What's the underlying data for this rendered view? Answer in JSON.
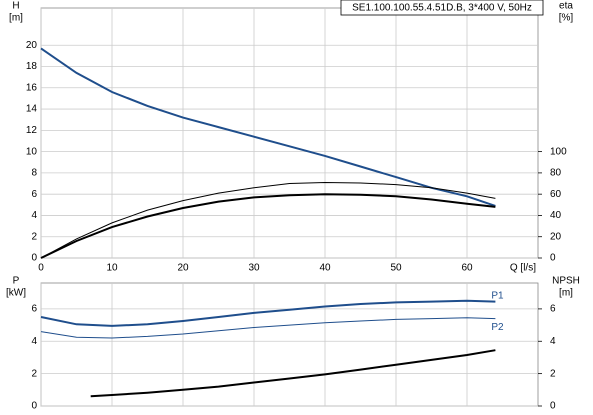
{
  "chart_data": [
    {
      "type": "line",
      "title": "SE1.100.100.55.4.51D.B, 3*400 V, 50Hz",
      "ylabel": "H",
      "yunit": "[m]",
      "y2label": "eta",
      "y2unit": "[%]",
      "xlabel": "Q [l/s]",
      "x": [
        0,
        5,
        10,
        15,
        20,
        25,
        30,
        35,
        40,
        45,
        50,
        55,
        60,
        64
      ],
      "xlim": [
        0,
        70
      ],
      "xticks": [
        0,
        10,
        20,
        30,
        40,
        50,
        60
      ],
      "ylim": [
        0,
        23.5
      ],
      "yticks": [
        0,
        2,
        4,
        6,
        8,
        10,
        12,
        14,
        16,
        18,
        20
      ],
      "y2lim": [
        0,
        235
      ],
      "y2ticks": [
        0,
        20,
        40,
        60,
        80,
        100
      ],
      "grid": true,
      "series": [
        {
          "color": "#1f4e8c",
          "width": 2,
          "values": [
            19.7,
            17.4,
            15.6,
            14.3,
            13.2,
            12.3,
            11.4,
            10.5,
            9.6,
            8.6,
            7.6,
            6.6,
            5.8,
            4.9
          ]
        },
        {
          "color": "#000000",
          "width": 2,
          "axis": "y2",
          "values": [
            0,
            16,
            29,
            39,
            47,
            53,
            57,
            59,
            60,
            59.5,
            58,
            55,
            51,
            48
          ]
        },
        {
          "color": "#000000",
          "width": 1,
          "axis": "y2",
          "values": [
            0,
            18,
            33,
            45,
            54,
            61,
            66,
            70,
            71,
            70.5,
            69,
            66,
            61,
            56
          ]
        }
      ]
    },
    {
      "type": "line",
      "ylabel": "P",
      "yunit": "[kW]",
      "y2label": "NPSH",
      "y2unit": "[m]",
      "x": [
        0,
        5,
        10,
        15,
        20,
        25,
        30,
        35,
        40,
        45,
        50,
        55,
        60,
        64
      ],
      "xlim": [
        0,
        70
      ],
      "xticks": [
        0,
        10,
        20,
        30,
        40,
        50,
        60
      ],
      "xtick_labels": false,
      "ylim": [
        0,
        7.6
      ],
      "yticks": [
        0,
        2,
        4,
        6
      ],
      "y2lim": [
        0,
        7.6
      ],
      "y2ticks": [
        0,
        2,
        4,
        6
      ],
      "grid": true,
      "series": [
        {
          "name": "P1",
          "color": "#1f4e8c",
          "width": 2,
          "values": [
            5.5,
            5.05,
            4.95,
            5.05,
            5.25,
            5.5,
            5.75,
            5.95,
            6.15,
            6.3,
            6.4,
            6.45,
            6.5,
            6.45
          ]
        },
        {
          "name": "P2",
          "color": "#1f4e8c",
          "width": 1,
          "values": [
            4.6,
            4.25,
            4.2,
            4.3,
            4.45,
            4.65,
            4.85,
            5.0,
            5.15,
            5.25,
            5.35,
            5.4,
            5.45,
            5.4
          ]
        },
        {
          "color": "#000000",
          "width": 2,
          "axis": "y2",
          "x": [
            7,
            10,
            15,
            20,
            25,
            30,
            35,
            40,
            45,
            50,
            55,
            60,
            64
          ],
          "values": [
            0.6,
            0.68,
            0.82,
            1.0,
            1.2,
            1.45,
            1.7,
            1.95,
            2.25,
            2.55,
            2.85,
            3.15,
            3.45
          ]
        }
      ]
    }
  ]
}
